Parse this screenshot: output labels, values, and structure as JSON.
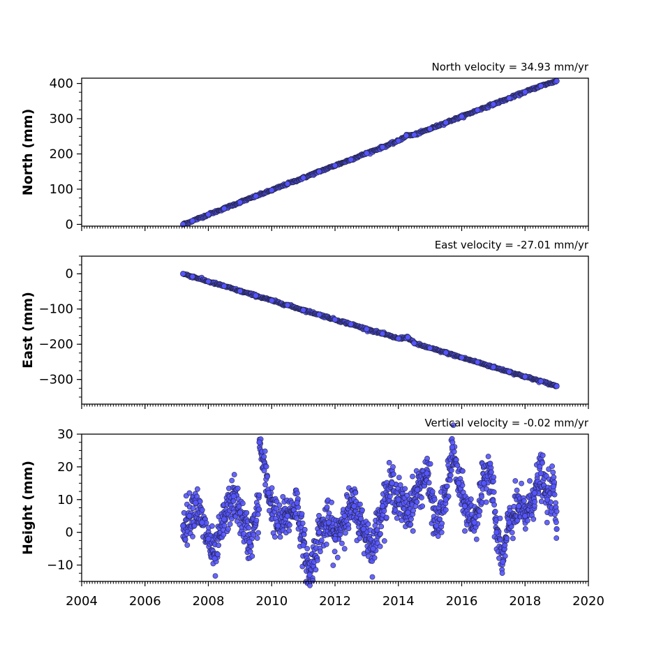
{
  "chart_data": {
    "type": "scatter",
    "x_axis": {
      "range": [
        2004,
        2020
      ],
      "ticks": [
        2004,
        2006,
        2008,
        2010,
        2012,
        2014,
        2016,
        2018,
        2020
      ],
      "tick_labels": [
        "2004",
        "2006",
        "2008",
        "2010",
        "2012",
        "2014",
        "2016",
        "2018",
        "2020"
      ],
      "minor_ticks_per_year": 12
    },
    "marker": {
      "fill": "#5555ff",
      "edge": "#222244",
      "alpha": 0.9
    },
    "panels": [
      {
        "id": "north",
        "title": "North velocity = 34.93 mm/yr",
        "ylabel": "North (mm)",
        "ylim": [
          -5,
          415
        ],
        "yticks": [
          0,
          100,
          200,
          300,
          400
        ],
        "ytick_labels": [
          "0",
          "100",
          "200",
          "300",
          "400"
        ],
        "ytick_minor_step": 25,
        "points": [
          [
            2007.2,
            0
          ],
          [
            2007.5,
            10
          ],
          [
            2008.0,
            28
          ],
          [
            2008.5,
            45
          ],
          [
            2009.0,
            63
          ],
          [
            2009.5,
            80
          ],
          [
            2010.0,
            97
          ],
          [
            2010.5,
            115
          ],
          [
            2011.0,
            132
          ],
          [
            2011.5,
            150
          ],
          [
            2012.0,
            167
          ],
          [
            2012.5,
            184
          ],
          [
            2013.0,
            202
          ],
          [
            2013.5,
            219
          ],
          [
            2014.0,
            237
          ],
          [
            2014.25,
            252
          ],
          [
            2014.5,
            254
          ],
          [
            2015.0,
            271
          ],
          [
            2015.5,
            289
          ],
          [
            2016.0,
            306
          ],
          [
            2016.5,
            324
          ],
          [
            2017.0,
            341
          ],
          [
            2017.5,
            358
          ],
          [
            2018.0,
            376
          ],
          [
            2018.5,
            393
          ],
          [
            2019.0,
            407
          ]
        ]
      },
      {
        "id": "east",
        "title": "East velocity = -27.01 mm/yr",
        "ylabel": "East (mm)",
        "ylim": [
          -370,
          50
        ],
        "yticks": [
          0,
          -100,
          -200,
          -300
        ],
        "ytick_labels": [
          "0",
          "−100",
          "−200",
          "−300"
        ],
        "ytick_minor_step": 25,
        "points": [
          [
            2007.2,
            0
          ],
          [
            2007.5,
            -8
          ],
          [
            2008.0,
            -22
          ],
          [
            2008.5,
            -35
          ],
          [
            2009.0,
            -49
          ],
          [
            2009.5,
            -62
          ],
          [
            2010.0,
            -76
          ],
          [
            2010.5,
            -89
          ],
          [
            2011.0,
            -103
          ],
          [
            2011.5,
            -116
          ],
          [
            2012.0,
            -130
          ],
          [
            2012.5,
            -143
          ],
          [
            2013.0,
            -157
          ],
          [
            2013.5,
            -170
          ],
          [
            2014.0,
            -184
          ],
          [
            2014.3,
            -180
          ],
          [
            2014.5,
            -197
          ],
          [
            2015.0,
            -211
          ],
          [
            2015.5,
            -224
          ],
          [
            2016.0,
            -238
          ],
          [
            2016.5,
            -251
          ],
          [
            2017.0,
            -265
          ],
          [
            2017.5,
            -278
          ],
          [
            2018.0,
            -292
          ],
          [
            2018.5,
            -305
          ],
          [
            2019.0,
            -319
          ]
        ]
      },
      {
        "id": "height",
        "title": "Vertical velocity = -0.02 mm/yr",
        "ylabel": "Height (mm)",
        "ylim": [
          -15,
          30
        ],
        "yticks": [
          -10,
          0,
          10,
          20,
          30
        ],
        "ytick_labels": [
          "−10",
          "0",
          "10",
          "20",
          "30"
        ],
        "ytick_minor_step": 2.5,
        "points": [
          [
            2007.2,
            2
          ],
          [
            2007.4,
            5
          ],
          [
            2007.6,
            9
          ],
          [
            2007.8,
            3
          ],
          [
            2008.0,
            -2
          ],
          [
            2008.2,
            -8
          ],
          [
            2008.5,
            4
          ],
          [
            2008.8,
            11
          ],
          [
            2009.0,
            6
          ],
          [
            2009.3,
            -3
          ],
          [
            2009.6,
            7
          ],
          [
            2009.61,
            27.5
          ],
          [
            2009.9,
            12
          ],
          [
            2010.2,
            2
          ],
          [
            2010.5,
            5
          ],
          [
            2010.8,
            9
          ],
          [
            2011.0,
            -4
          ],
          [
            2011.2,
            -13
          ],
          [
            2011.5,
            0
          ],
          [
            2011.8,
            3
          ],
          [
            2012.0,
            -2
          ],
          [
            2012.3,
            5
          ],
          [
            2012.6,
            8
          ],
          [
            2012.9,
            1
          ],
          [
            2013.2,
            -5
          ],
          [
            2013.5,
            8
          ],
          [
            2013.8,
            15
          ],
          [
            2014.0,
            10
          ],
          [
            2014.3,
            6
          ],
          [
            2014.6,
            13
          ],
          [
            2014.9,
            18
          ],
          [
            2015.2,
            2
          ],
          [
            2015.5,
            10
          ],
          [
            2015.7,
            26
          ],
          [
            2015.9,
            15
          ],
          [
            2016.1,
            8
          ],
          [
            2016.4,
            3
          ],
          [
            2016.7,
            15
          ],
          [
            2016.9,
            21
          ],
          [
            2017.1,
            0
          ],
          [
            2017.3,
            -9
          ],
          [
            2017.5,
            3
          ],
          [
            2017.8,
            8
          ],
          [
            2018.0,
            5
          ],
          [
            2018.3,
            12
          ],
          [
            2018.5,
            18
          ],
          [
            2018.7,
            10
          ],
          [
            2018.9,
            14
          ],
          [
            2019.0,
            1
          ]
        ]
      }
    ]
  }
}
